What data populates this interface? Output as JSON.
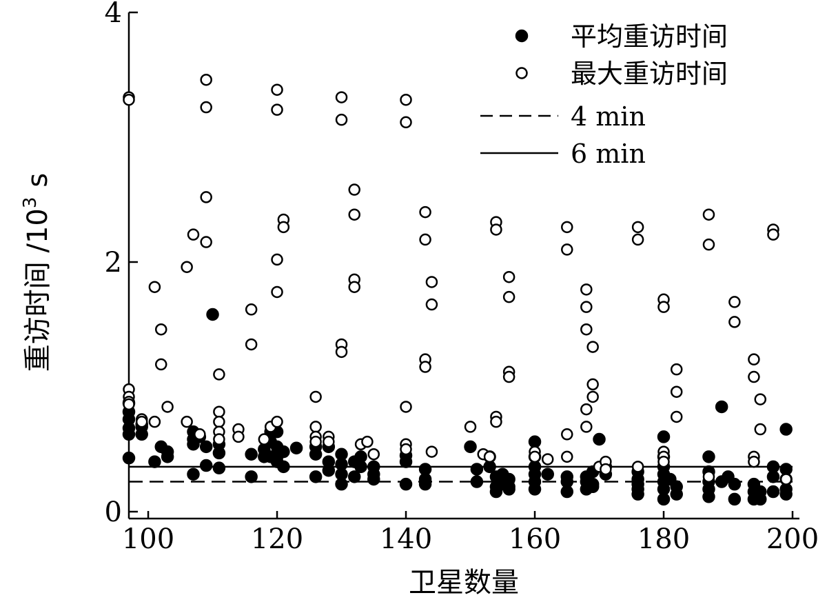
{
  "chart_data": {
    "type": "scatter",
    "xlabel": "卫星数量",
    "ylabel": "重访时间 /10",
    "ylabel_sup": "3",
    "ylabel_unit": "s",
    "xlim": [
      97,
      200
    ],
    "ylim": [
      0,
      4
    ],
    "xticks": [
      100,
      120,
      140,
      160,
      180,
      200
    ],
    "yticks": [
      0,
      2,
      4
    ],
    "grid": false,
    "legend_placement": "top-right",
    "series": [
      {
        "name": "平均重访时间",
        "marker": "filled-circle",
        "points": [
          [
            97,
            0.87
          ],
          [
            97,
            0.8
          ],
          [
            97,
            0.74
          ],
          [
            97,
            0.67
          ],
          [
            97,
            0.62
          ],
          [
            97,
            0.43
          ],
          [
            99,
            0.7
          ],
          [
            99,
            0.68
          ],
          [
            99,
            0.62
          ],
          [
            101,
            0.4
          ],
          [
            102,
            0.52
          ],
          [
            103,
            0.48
          ],
          [
            103,
            0.44
          ],
          [
            107,
            0.64
          ],
          [
            107,
            0.58
          ],
          [
            107,
            0.54
          ],
          [
            107,
            0.3
          ],
          [
            108,
            0.6
          ],
          [
            109,
            0.52
          ],
          [
            109,
            0.37
          ],
          [
            110,
            1.58
          ],
          [
            111,
            0.54
          ],
          [
            111,
            0.47
          ],
          [
            111,
            0.35
          ],
          [
            116,
            0.46
          ],
          [
            116,
            0.28
          ],
          [
            118,
            0.5
          ],
          [
            118,
            0.44
          ],
          [
            119,
            0.64
          ],
          [
            119,
            0.56
          ],
          [
            119,
            0.44
          ],
          [
            120,
            0.64
          ],
          [
            120,
            0.52
          ],
          [
            120,
            0.44
          ],
          [
            120,
            0.4
          ],
          [
            121,
            0.48
          ],
          [
            121,
            0.36
          ],
          [
            123,
            0.51
          ],
          [
            126,
            0.52
          ],
          [
            126,
            0.46
          ],
          [
            126,
            0.28
          ],
          [
            128,
            0.52
          ],
          [
            128,
            0.4
          ],
          [
            128,
            0.33
          ],
          [
            130,
            0.46
          ],
          [
            130,
            0.38
          ],
          [
            130,
            0.3
          ],
          [
            130,
            0.22
          ],
          [
            132,
            0.4
          ],
          [
            132,
            0.28
          ],
          [
            133,
            0.44
          ],
          [
            133,
            0.36
          ],
          [
            135,
            0.36
          ],
          [
            135,
            0.3
          ],
          [
            135,
            0.26
          ],
          [
            140,
            0.45
          ],
          [
            140,
            0.4
          ],
          [
            140,
            0.22
          ],
          [
            143,
            0.34
          ],
          [
            143,
            0.26
          ],
          [
            143,
            0.22
          ],
          [
            150,
            0.52
          ],
          [
            151,
            0.34
          ],
          [
            151,
            0.24
          ],
          [
            153,
            0.44
          ],
          [
            153,
            0.36
          ],
          [
            154,
            0.28
          ],
          [
            154,
            0.2
          ],
          [
            154,
            0.16
          ],
          [
            155,
            0.3
          ],
          [
            155,
            0.22
          ],
          [
            156,
            0.26
          ],
          [
            156,
            0.2
          ],
          [
            156,
            0.18
          ],
          [
            160,
            0.56
          ],
          [
            160,
            0.44
          ],
          [
            160,
            0.36
          ],
          [
            160,
            0.3
          ],
          [
            160,
            0.24
          ],
          [
            160,
            0.18
          ],
          [
            162,
            0.3
          ],
          [
            165,
            0.28
          ],
          [
            165,
            0.24
          ],
          [
            165,
            0.16
          ],
          [
            168,
            0.28
          ],
          [
            168,
            0.24
          ],
          [
            168,
            0.18
          ],
          [
            169,
            0.32
          ],
          [
            169,
            0.22
          ],
          [
            169,
            0.2
          ],
          [
            170,
            0.58
          ],
          [
            171,
            0.36
          ],
          [
            171,
            0.3
          ],
          [
            176,
            0.32
          ],
          [
            176,
            0.26
          ],
          [
            176,
            0.22
          ],
          [
            176,
            0.18
          ],
          [
            176,
            0.14
          ],
          [
            180,
            0.6
          ],
          [
            180,
            0.44
          ],
          [
            180,
            0.36
          ],
          [
            180,
            0.3
          ],
          [
            180,
            0.24
          ],
          [
            180,
            0.18
          ],
          [
            180,
            0.1
          ],
          [
            181,
            0.26
          ],
          [
            182,
            0.2
          ],
          [
            182,
            0.14
          ],
          [
            187,
            0.44
          ],
          [
            187,
            0.32
          ],
          [
            187,
            0.24
          ],
          [
            187,
            0.18
          ],
          [
            187,
            0.12
          ],
          [
            189,
            0.84
          ],
          [
            189,
            0.24
          ],
          [
            190,
            0.28
          ],
          [
            191,
            0.22
          ],
          [
            191,
            0.1
          ],
          [
            194,
            0.22
          ],
          [
            194,
            0.16
          ],
          [
            194,
            0.1
          ],
          [
            195,
            0.16
          ],
          [
            195,
            0.1
          ],
          [
            197,
            0.36
          ],
          [
            197,
            0.28
          ],
          [
            197,
            0.16
          ],
          [
            199,
            0.66
          ],
          [
            199,
            0.34
          ],
          [
            199,
            0.26
          ],
          [
            199,
            0.18
          ],
          [
            199,
            0.14
          ]
        ]
      },
      {
        "name": "最大重访时间",
        "marker": "open-circle",
        "points": [
          [
            97,
            3.32
          ],
          [
            97,
            3.3
          ],
          [
            97,
            0.98
          ],
          [
            97,
            0.92
          ],
          [
            97,
            0.88
          ],
          [
            97,
            0.86
          ],
          [
            99,
            0.74
          ],
          [
            99,
            0.72
          ],
          [
            101,
            1.8
          ],
          [
            101,
            0.72
          ],
          [
            102,
            1.46
          ],
          [
            102,
            1.18
          ],
          [
            103,
            0.84
          ],
          [
            106,
            1.96
          ],
          [
            106,
            0.72
          ],
          [
            107,
            2.22
          ],
          [
            108,
            0.62
          ],
          [
            109,
            3.46
          ],
          [
            109,
            3.24
          ],
          [
            109,
            2.52
          ],
          [
            109,
            2.16
          ],
          [
            111,
            1.1
          ],
          [
            111,
            0.8
          ],
          [
            111,
            0.72
          ],
          [
            111,
            0.64
          ],
          [
            111,
            0.58
          ],
          [
            114,
            0.66
          ],
          [
            114,
            0.6
          ],
          [
            116,
            1.62
          ],
          [
            116,
            1.34
          ],
          [
            118,
            0.58
          ],
          [
            119,
            0.68
          ],
          [
            120,
            3.38
          ],
          [
            120,
            3.22
          ],
          [
            120,
            2.02
          ],
          [
            120,
            1.76
          ],
          [
            120,
            0.72
          ],
          [
            121,
            2.34
          ],
          [
            121,
            2.28
          ],
          [
            126,
            0.92
          ],
          [
            126,
            0.68
          ],
          [
            126,
            0.6
          ],
          [
            126,
            0.56
          ],
          [
            128,
            0.6
          ],
          [
            128,
            0.56
          ],
          [
            130,
            3.32
          ],
          [
            130,
            3.14
          ],
          [
            130,
            1.34
          ],
          [
            130,
            1.28
          ],
          [
            132,
            2.58
          ],
          [
            132,
            2.38
          ],
          [
            132,
            1.86
          ],
          [
            132,
            1.8
          ],
          [
            133,
            0.54
          ],
          [
            134,
            0.56
          ],
          [
            135,
            0.46
          ],
          [
            140,
            3.3
          ],
          [
            140,
            3.12
          ],
          [
            140,
            0.84
          ],
          [
            140,
            0.54
          ],
          [
            140,
            0.5
          ],
          [
            143,
            2.4
          ],
          [
            143,
            2.18
          ],
          [
            143,
            1.22
          ],
          [
            143,
            1.16
          ],
          [
            144,
            1.84
          ],
          [
            144,
            1.66
          ],
          [
            144,
            0.48
          ],
          [
            150,
            0.68
          ],
          [
            152,
            0.46
          ],
          [
            153,
            0.44
          ],
          [
            154,
            2.32
          ],
          [
            154,
            2.26
          ],
          [
            154,
            0.76
          ],
          [
            154,
            0.72
          ],
          [
            156,
            1.88
          ],
          [
            156,
            1.72
          ],
          [
            156,
            1.12
          ],
          [
            156,
            1.08
          ],
          [
            160,
            0.48
          ],
          [
            160,
            0.44
          ],
          [
            162,
            0.42
          ],
          [
            165,
            2.28
          ],
          [
            165,
            2.1
          ],
          [
            165,
            0.62
          ],
          [
            165,
            0.44
          ],
          [
            168,
            1.78
          ],
          [
            168,
            1.64
          ],
          [
            168,
            1.46
          ],
          [
            168,
            0.82
          ],
          [
            168,
            0.68
          ],
          [
            169,
            1.32
          ],
          [
            169,
            1.02
          ],
          [
            169,
            0.92
          ],
          [
            170,
            0.36
          ],
          [
            171,
            0.4
          ],
          [
            171,
            0.34
          ],
          [
            176,
            2.28
          ],
          [
            176,
            2.18
          ],
          [
            176,
            0.36
          ],
          [
            180,
            1.7
          ],
          [
            180,
            1.64
          ],
          [
            180,
            0.48
          ],
          [
            180,
            0.44
          ],
          [
            180,
            0.4
          ],
          [
            182,
            1.14
          ],
          [
            182,
            0.96
          ],
          [
            182,
            0.76
          ],
          [
            187,
            2.38
          ],
          [
            187,
            2.14
          ],
          [
            187,
            0.28
          ],
          [
            191,
            1.68
          ],
          [
            191,
            1.52
          ],
          [
            194,
            1.22
          ],
          [
            194,
            1.08
          ],
          [
            194,
            0.44
          ],
          [
            194,
            0.4
          ],
          [
            195,
            0.9
          ],
          [
            195,
            0.66
          ],
          [
            197,
            2.26
          ],
          [
            197,
            2.22
          ],
          [
            199,
            0.26
          ]
        ]
      }
    ],
    "reference_lines": [
      {
        "name": "4 min",
        "y": 0.24,
        "style": "dashed"
      },
      {
        "name": "6 min",
        "y": 0.36,
        "style": "solid"
      }
    ]
  }
}
